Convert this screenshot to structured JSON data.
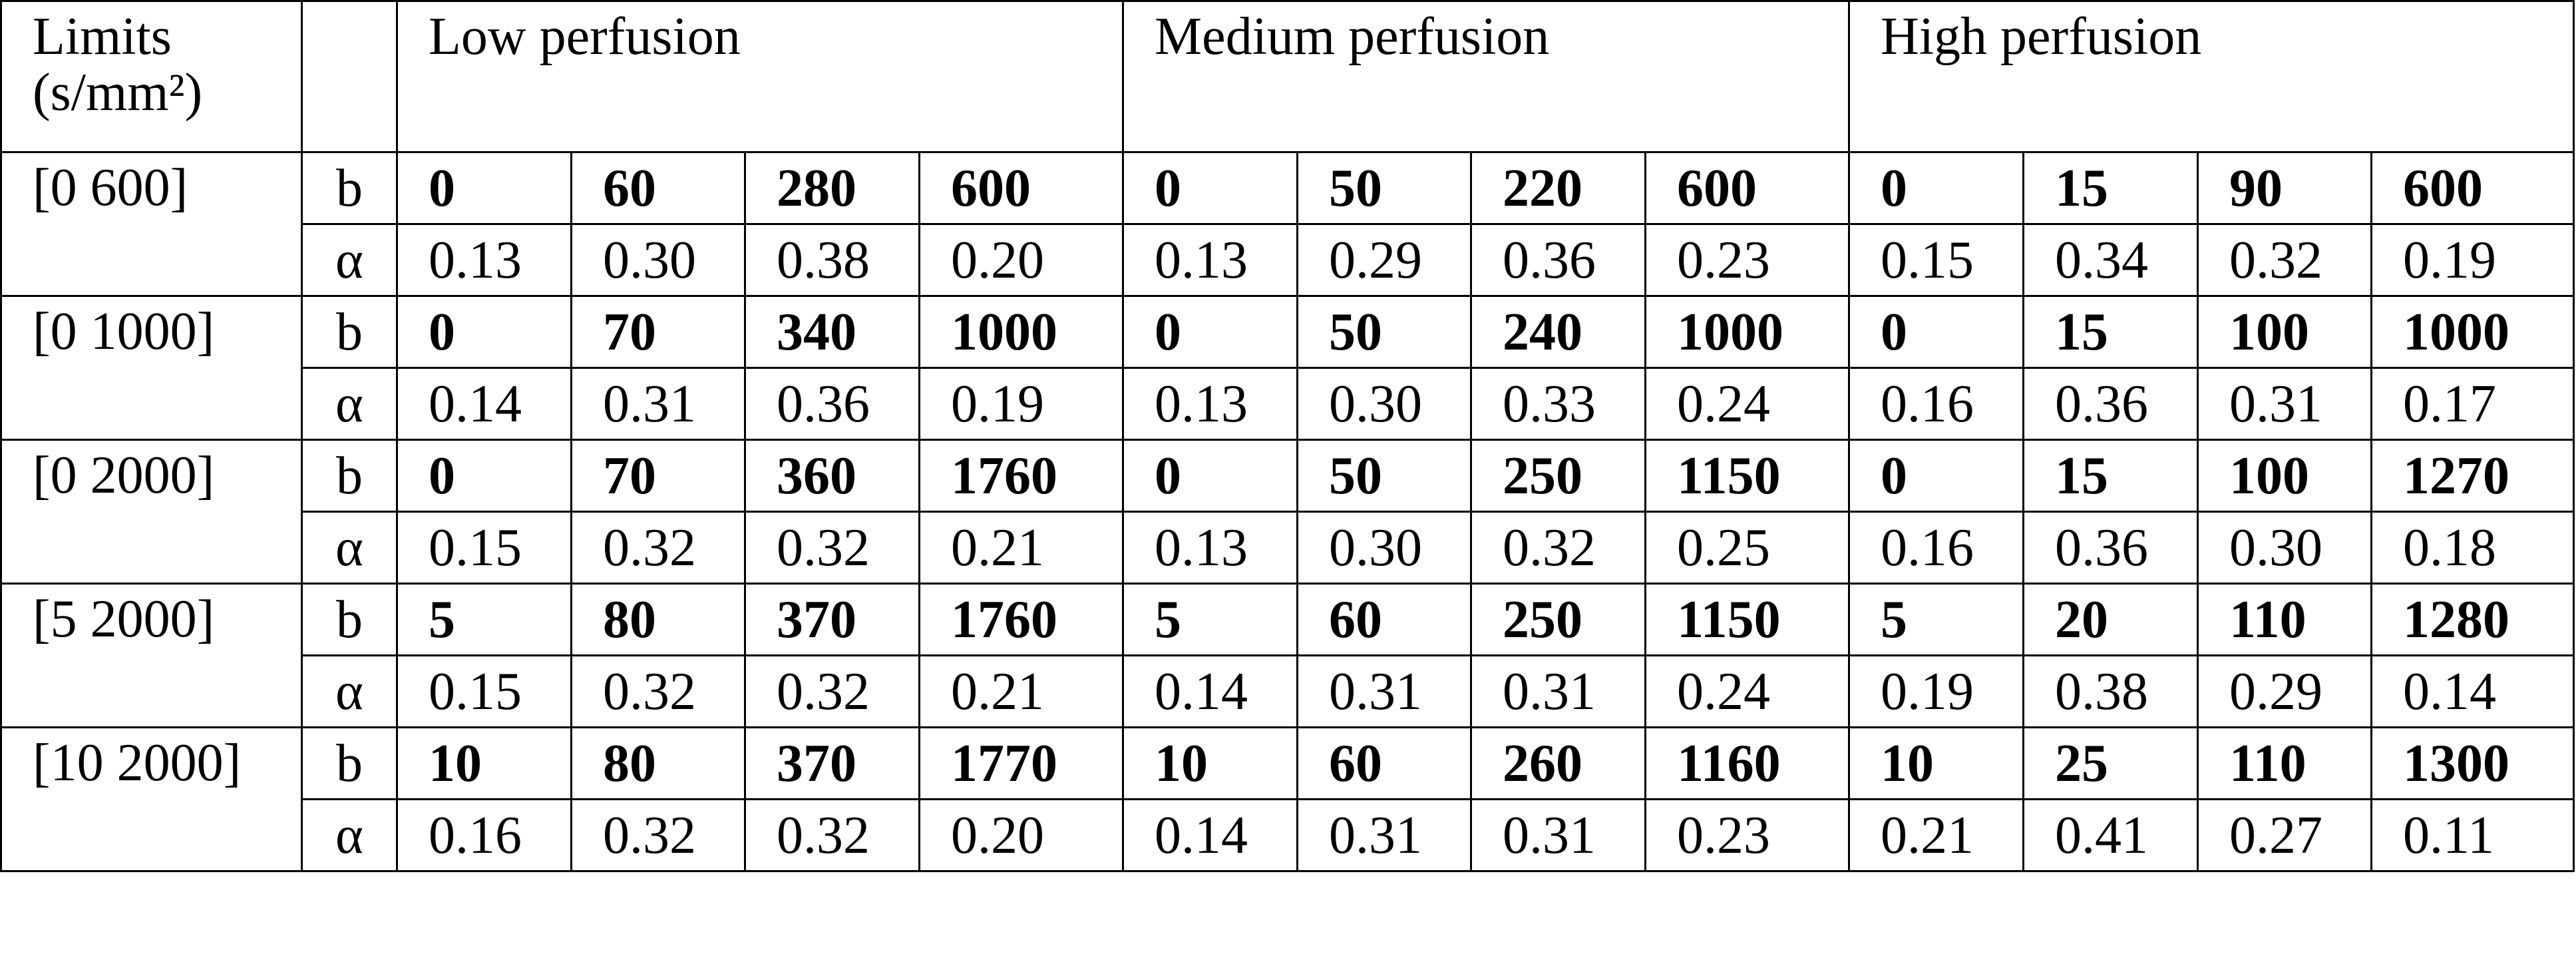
{
  "header": {
    "limits": "Limits (s/mm²)",
    "groups": [
      "Low perfusion",
      "Medium perfusion",
      "High perfusion"
    ]
  },
  "rows": [
    {
      "limits": "[0 600]",
      "b_label": "b",
      "b": [
        "0",
        "60",
        "280",
        "600",
        "0",
        "50",
        "220",
        "600",
        "0",
        "15",
        "90",
        "600"
      ],
      "alpha_label": "α",
      "alpha": [
        "0.13",
        "0.30",
        "0.38",
        "0.20",
        "0.13",
        "0.29",
        "0.36",
        "0.23",
        "0.15",
        "0.34",
        "0.32",
        "0.19"
      ]
    },
    {
      "limits": "[0 1000]",
      "b_label": "b",
      "b": [
        "0",
        "70",
        "340",
        "1000",
        "0",
        "50",
        "240",
        "1000",
        "0",
        "15",
        "100",
        "1000"
      ],
      "alpha_label": "α",
      "alpha": [
        "0.14",
        "0.31",
        "0.36",
        "0.19",
        "0.13",
        "0.30",
        "0.33",
        "0.24",
        "0.16",
        "0.36",
        "0.31",
        "0.17"
      ]
    },
    {
      "limits": "[0 2000]",
      "b_label": "b",
      "b": [
        "0",
        "70",
        "360",
        "1760",
        "0",
        "50",
        "250",
        "1150",
        "0",
        "15",
        "100",
        "1270"
      ],
      "alpha_label": "α",
      "alpha": [
        "0.15",
        "0.32",
        "0.32",
        "0.21",
        "0.13",
        "0.30",
        "0.32",
        "0.25",
        "0.16",
        "0.36",
        "0.30",
        "0.18"
      ]
    },
    {
      "limits": "[5 2000]",
      "b_label": "b",
      "b": [
        "5",
        "80",
        "370",
        "1760",
        "5",
        "60",
        "250",
        "1150",
        "5",
        "20",
        "110",
        "1280"
      ],
      "alpha_label": "α",
      "alpha": [
        "0.15",
        "0.32",
        "0.32",
        "0.21",
        "0.14",
        "0.31",
        "0.31",
        "0.24",
        "0.19",
        "0.38",
        "0.29",
        "0.14"
      ]
    },
    {
      "limits": "[10 2000]",
      "b_label": "b",
      "b": [
        "10",
        "80",
        "370",
        "1770",
        "10",
        "60",
        "260",
        "1160",
        "10",
        "25",
        "110",
        "1300"
      ],
      "alpha_label": "α",
      "alpha": [
        "0.16",
        "0.32",
        "0.32",
        "0.20",
        "0.14",
        "0.31",
        "0.31",
        "0.23",
        "0.21",
        "0.41",
        "0.27",
        "0.11"
      ]
    }
  ]
}
